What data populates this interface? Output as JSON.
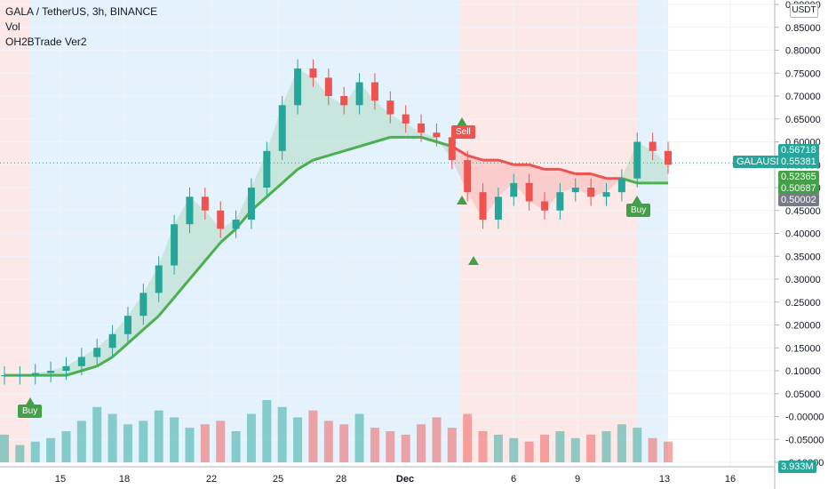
{
  "legend": {
    "title": "GALA / TetherUS, 3h, BINANCE",
    "indicator1": "Vol",
    "indicator2": "OH2BTrade Ver2"
  },
  "currency_label": "USDT",
  "symbol_label": "GALAUSDT",
  "price_labels": {
    "p1": "0.56718",
    "p2": "0.55381",
    "p3": "0.52365",
    "p4": "0.50687",
    "p5": "0.50002",
    "vol": "3.933M"
  },
  "signals": {
    "buy1": "Buy",
    "sell1": "Sell",
    "buy2": "Buy"
  },
  "chart_data": {
    "type": "candlestick",
    "x_ticks": [
      "15",
      "18",
      "22",
      "25",
      "28",
      "Dec",
      "6",
      "9",
      "13",
      "16"
    ],
    "y_ticks": [
      "0.90000",
      "0.85000",
      "0.80000",
      "0.75000",
      "0.70000",
      "0.65000",
      "0.60000",
      "0.55000",
      "0.50000",
      "0.45000",
      "0.40000",
      "0.35000",
      "0.30000",
      "0.25000",
      "0.20000",
      "0.15000",
      "0.10000",
      "0.05000",
      "-0.00000",
      "-0.05000",
      "-0.10000"
    ],
    "price_series": [
      {
        "name": "close",
        "values": [
          0.09,
          0.09,
          0.095,
          0.1,
          0.11,
          0.13,
          0.15,
          0.18,
          0.22,
          0.27,
          0.33,
          0.42,
          0.48,
          0.45,
          0.41,
          0.43,
          0.5,
          0.58,
          0.68,
          0.76,
          0.74,
          0.7,
          0.68,
          0.73,
          0.69,
          0.66,
          0.64,
          0.62,
          0.61,
          0.56,
          0.49,
          0.43,
          0.48,
          0.51,
          0.47,
          0.45,
          0.49,
          0.5,
          0.48,
          0.49,
          0.52,
          0.6,
          0.58,
          0.55
        ]
      },
      {
        "name": "trend",
        "values": [
          0.09,
          0.09,
          0.09,
          0.09,
          0.09,
          0.1,
          0.11,
          0.13,
          0.16,
          0.19,
          0.22,
          0.26,
          0.3,
          0.34,
          0.38,
          0.41,
          0.45,
          0.48,
          0.51,
          0.54,
          0.56,
          0.57,
          0.58,
          0.59,
          0.6,
          0.61,
          0.61,
          0.61,
          0.6,
          0.59,
          0.57,
          0.56,
          0.56,
          0.55,
          0.55,
          0.54,
          0.54,
          0.53,
          0.53,
          0.52,
          0.52,
          0.51,
          0.51,
          0.51
        ]
      }
    ],
    "volume": [
      40,
      25,
      30,
      35,
      45,
      60,
      80,
      70,
      55,
      60,
      75,
      65,
      50,
      55,
      60,
      45,
      70,
      90,
      80,
      65,
      75,
      60,
      55,
      70,
      50,
      45,
      40,
      55,
      65,
      50,
      70,
      45,
      40,
      35,
      30,
      40,
      45,
      35,
      40,
      45,
      55,
      50,
      35,
      30
    ],
    "background_regions": [
      {
        "state": "bearish",
        "color": "#fde8e8"
      },
      {
        "state": "bullish",
        "color": "#e3f2fd"
      },
      {
        "state": "bearish",
        "color": "#fde8e8"
      },
      {
        "state": "bullish",
        "color": "#e3f2fd"
      }
    ],
    "colors": {
      "up": "#26a69a",
      "down": "#ef5350",
      "trend_up": "#4caf50",
      "trend_down": "#ef5350"
    },
    "last_price": 0.55381
  }
}
